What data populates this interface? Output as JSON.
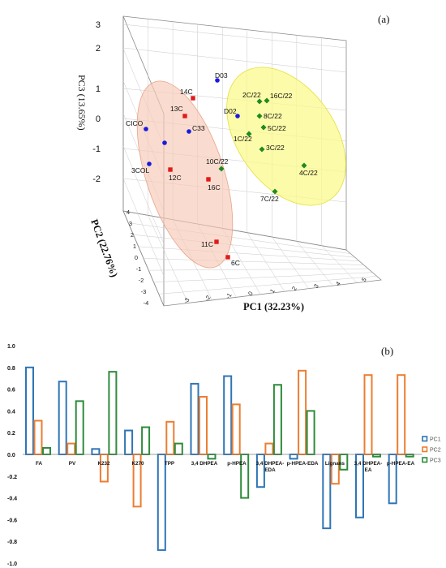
{
  "figure": {
    "panel_a_tag": "(a)",
    "panel_b_tag": "(b)"
  },
  "chart_data": [
    {
      "type": "scatter",
      "panel": "(a)",
      "projection": "3d",
      "xlabel": "PC1 (32.23%)",
      "ylabel": "PC2 (22.76%)",
      "zlabel": "PC3 (13.65%)",
      "x_ticks": [
        "-3",
        "-2",
        "-1",
        "0",
        "1",
        "2",
        "3",
        "4",
        "5"
      ],
      "y_ticks": [
        "-4",
        "-3",
        "-2",
        "-1",
        "0",
        "1",
        "2",
        "3",
        "4"
      ],
      "z_ticks": [
        "-2",
        "-1",
        "0",
        "1",
        "2",
        "3"
      ],
      "xlim": [
        -4,
        5
      ],
      "ylim": [
        -4,
        4
      ],
      "zlim": [
        -3,
        3
      ],
      "grid": true,
      "groups": [
        {
          "color": "#1a1adc",
          "marker": "circle",
          "points": [
            "D03",
            "D02",
            "CICO",
            "C33",
            "3COL"
          ]
        },
        {
          "color": "#e01a1a",
          "marker": "square",
          "points": [
            "14C",
            "13C",
            "12C",
            "16C",
            "11C",
            "6C"
          ]
        },
        {
          "color": "#1f8a1f",
          "marker": "diamond",
          "points": [
            "2C/22",
            "16C/22",
            "8C/22",
            "5C/22",
            "1C/22",
            "3C/22",
            "4C/22",
            "7C/22",
            "10C/22"
          ]
        }
      ],
      "ellipses": [
        {
          "fill": "#f6c9b6",
          "stroke": "#e8a48a"
        },
        {
          "fill": "#fbfa8c",
          "stroke": "#e4df3c"
        }
      ]
    },
    {
      "type": "bar",
      "panel": "(b)",
      "categories": [
        "FA",
        "PV",
        "K232",
        "K270",
        "TPP",
        "3,4 DHPEA",
        "p-HPEA",
        "3,4 DHPEA-EDA",
        "p-HPEA-EDA",
        "Lignans",
        "3,4 DHPEA-EA",
        "p-HPEA-EA"
      ],
      "series": [
        {
          "name": "PC1",
          "color": "#2e75b6",
          "values": [
            0.8,
            0.67,
            0.05,
            0.22,
            -0.88,
            0.65,
            0.72,
            -0.3,
            -0.04,
            -0.68,
            -0.58,
            -0.45
          ]
        },
        {
          "name": "PC2",
          "color": "#ed7d31",
          "values": [
            0.31,
            0.1,
            -0.25,
            -0.48,
            0.3,
            0.53,
            0.46,
            0.1,
            0.77,
            -0.27,
            0.73,
            0.73
          ]
        },
        {
          "name": "PC3",
          "color": "#2e8b3a",
          "values": [
            0.06,
            0.49,
            0.76,
            0.25,
            0.1,
            -0.04,
            -0.4,
            0.64,
            0.4,
            -0.14,
            -0.02,
            -0.02
          ]
        }
      ],
      "y_ticks": [
        "1.0",
        "0.8",
        "0.6",
        "0.4",
        "0.2",
        "0.0",
        "-0.2",
        "-0.4",
        "-0.6",
        "-0.8",
        "-1.0"
      ],
      "ylim": [
        -1,
        1
      ],
      "legend_position": "right"
    }
  ]
}
